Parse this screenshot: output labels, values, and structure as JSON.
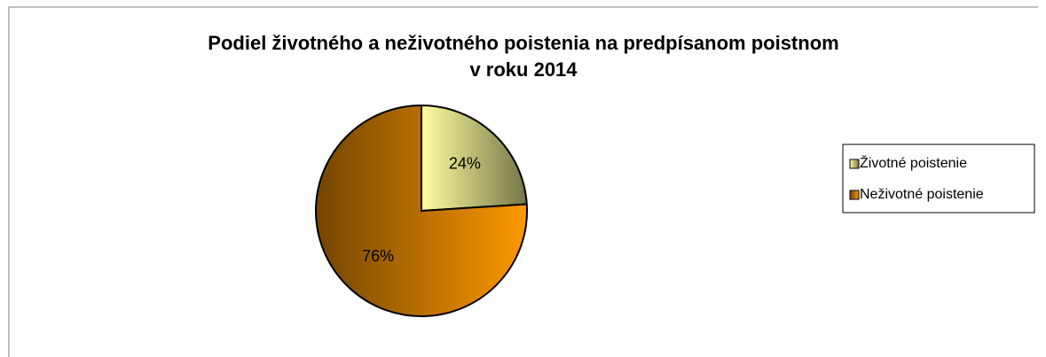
{
  "chart_data": {
    "type": "pie",
    "title": [
      "Podiel životného a neživotného poistenia na predpísanom poistnom",
      "v roku 2014"
    ],
    "categories": [
      "Životné poistenie",
      "Neživotné poistenie"
    ],
    "values": [
      24,
      76
    ],
    "value_labels": [
      "24%",
      "76%"
    ],
    "colors": [
      "#ffffa0",
      "#ff9900"
    ],
    "legend": "right"
  }
}
